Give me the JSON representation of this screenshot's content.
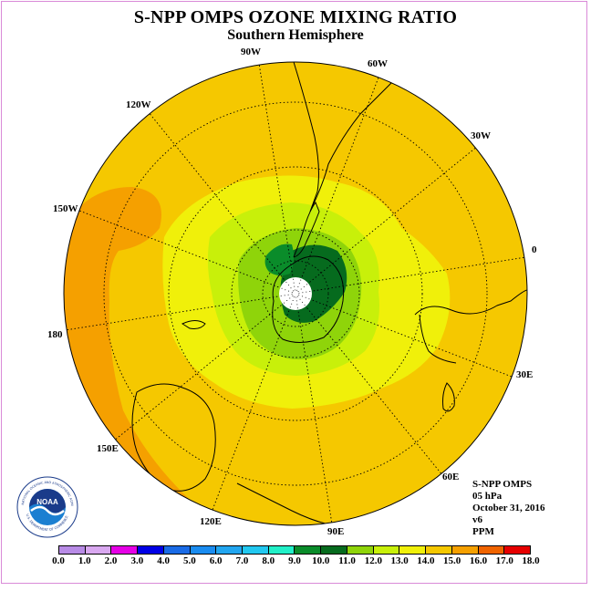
{
  "title": "S-NPP OMPS OZONE MIXING RATIO",
  "subtitle": "Southern Hemisphere",
  "longitude_labels": [
    "90W",
    "60W",
    "30W",
    "0",
    "30E",
    "60E",
    "90E",
    "120E",
    "150E",
    "180",
    "150W",
    "120W"
  ],
  "info": {
    "product": "S-NPP OMPS",
    "level": "05 hPa",
    "date": "October 31, 2016",
    "version": "v6",
    "units": "PPM"
  },
  "logo": {
    "text": "NOAA",
    "ring_text": "NATIONAL OCEANIC AND ATMOSPHERIC ADMINISTRATION",
    "ring_bottom_text": "U.S. DEPARTMENT OF COMMERCE"
  },
  "colorbar": {
    "ticks": [
      "0.0",
      "1.0",
      "2.0",
      "3.0",
      "4.0",
      "5.0",
      "6.0",
      "7.0",
      "8.0",
      "9.0",
      "10.0",
      "11.0",
      "12.0",
      "13.0",
      "14.0",
      "15.0",
      "16.0",
      "17.0",
      "18.0"
    ],
    "colors": [
      "#b88be6",
      "#d9a8f0",
      "#e600e6",
      "#0000e6",
      "#1a6be6",
      "#1a8cf0",
      "#22a6f0",
      "#22c8f0",
      "#22f0c8",
      "#0a8c2a",
      "#066b1e",
      "#8fd40a",
      "#c8f00a",
      "#f0f00a",
      "#f5c800",
      "#f5a000",
      "#f06400",
      "#e60000",
      "#7a4a28"
    ]
  },
  "map_colors": {
    "c13_14": "#f5c800",
    "c14_15": "#f5a000",
    "c15_16": "#f06400",
    "c12_13": "#f0f00a",
    "c11_12": "#c8f00a",
    "c10_11": "#8fd40a",
    "c9_10": "#066b1e",
    "c8_9": "#0a8c2a",
    "pole": "#ffffff"
  }
}
